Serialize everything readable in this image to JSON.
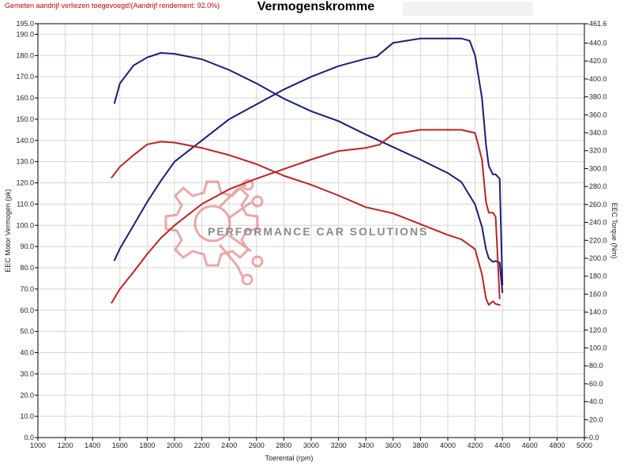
{
  "header": {
    "note": "Gemeten aandrijf verliezen toegevoegd!(Aandrijf rendement: 92.0%)",
    "title": "Vermogenskromme"
  },
  "watermark": {
    "text": "PERFORMANCE CAR SOLUTIONS",
    "color": "#e06060"
  },
  "chart_data": {
    "type": "line",
    "title": "Vermogenskromme",
    "xlabel": "Toerental (rpm)",
    "ylabel_left": "EEC Motor Vermogen (pk)",
    "ylabel_right": "EEC Torque (Nm)",
    "xlim": [
      1000,
      5000
    ],
    "ylim_left": [
      0,
      195
    ],
    "ylim_right": [
      0,
      461.6
    ],
    "grid": true,
    "x_ticks": [
      "1000",
      "1200",
      "1400",
      "1600",
      "1800",
      "2000",
      "2200",
      "2400",
      "2600",
      "2800",
      "3000",
      "3200",
      "3400",
      "3600",
      "3800",
      "4000",
      "4200",
      "4400",
      "4600",
      "4800",
      "5000"
    ],
    "y_left_ticks": [
      "0.0",
      "10.0",
      "20.0",
      "30.0",
      "40.0",
      "50.0",
      "60.0",
      "70.0",
      "80.0",
      "90.0",
      "100.0",
      "110.0",
      "120.0",
      "130.0",
      "140.0",
      "150.0",
      "160.0",
      "170.0",
      "180.0",
      "190.0",
      "195.0"
    ],
    "y_right_ticks": [
      "0.0",
      "20.0",
      "40.0",
      "60.0",
      "80.0",
      "100.0",
      "120.0",
      "140.0",
      "160.0",
      "180.0",
      "200.0",
      "220.0",
      "240.0",
      "260.0",
      "280.0",
      "300.0",
      "320.0",
      "340.0",
      "360.0",
      "380.0",
      "400.0",
      "420.0",
      "440.0",
      "461.6"
    ],
    "series": [
      {
        "axis": "left",
        "color": "#1c1c7a",
        "x": [
          1560,
          1600,
          1700,
          1800,
          1900,
          2000,
          2200,
          2400,
          2600,
          2800,
          3000,
          3200,
          3400,
          3480,
          3600,
          3800,
          3900,
          4000,
          4100,
          4160,
          4200,
          4250,
          4280,
          4300,
          4330,
          4350,
          4380,
          4400
        ],
        "values": [
          83.5,
          89,
          100,
          111,
          121,
          130,
          140,
          150,
          157,
          164,
          170,
          175,
          178.5,
          179.5,
          186,
          188,
          188,
          188,
          188,
          187,
          180,
          160,
          138,
          128,
          124,
          124,
          122,
          72
        ]
      },
      {
        "axis": "right",
        "color": "#1c1c7a",
        "x": [
          1560,
          1600,
          1700,
          1800,
          1900,
          2000,
          2200,
          2400,
          2600,
          2800,
          3000,
          3200,
          3400,
          3600,
          3800,
          4000,
          4100,
          4200,
          4250,
          4280,
          4300,
          4330,
          4350,
          4380,
          4400
        ],
        "values": [
          373,
          395,
          415,
          424,
          429,
          428,
          422,
          410,
          395,
          378,
          364,
          353,
          338,
          324,
          310,
          295,
          285,
          260,
          235,
          210,
          200,
          196,
          197,
          195,
          162
        ]
      },
      {
        "axis": "left",
        "color": "#c22020",
        "x": [
          1540,
          1600,
          1700,
          1800,
          1900,
          2000,
          2200,
          2400,
          2600,
          2800,
          3000,
          3200,
          3400,
          3500,
          3600,
          3800,
          4000,
          4100,
          4200,
          4250,
          4280,
          4300,
          4330,
          4350,
          4380
        ],
        "values": [
          63.5,
          70,
          78,
          86.5,
          94,
          100,
          110,
          117,
          122,
          126.5,
          131,
          135,
          136.5,
          138,
          143,
          145,
          145,
          145,
          143.5,
          131,
          111,
          106,
          106,
          104,
          65.5
        ]
      },
      {
        "axis": "right",
        "color": "#c22020",
        "x": [
          1540,
          1600,
          1700,
          1800,
          1900,
          2000,
          2200,
          2400,
          2600,
          2800,
          3000,
          3200,
          3400,
          3600,
          3800,
          4000,
          4100,
          4200,
          4250,
          4280,
          4300,
          4330,
          4350,
          4380
        ],
        "values": [
          290,
          302,
          315,
          327,
          330,
          329,
          323,
          315,
          305,
          292,
          282,
          270,
          257,
          250,
          238,
          226,
          221,
          210,
          182,
          155,
          148,
          152,
          149,
          148
        ]
      }
    ]
  }
}
